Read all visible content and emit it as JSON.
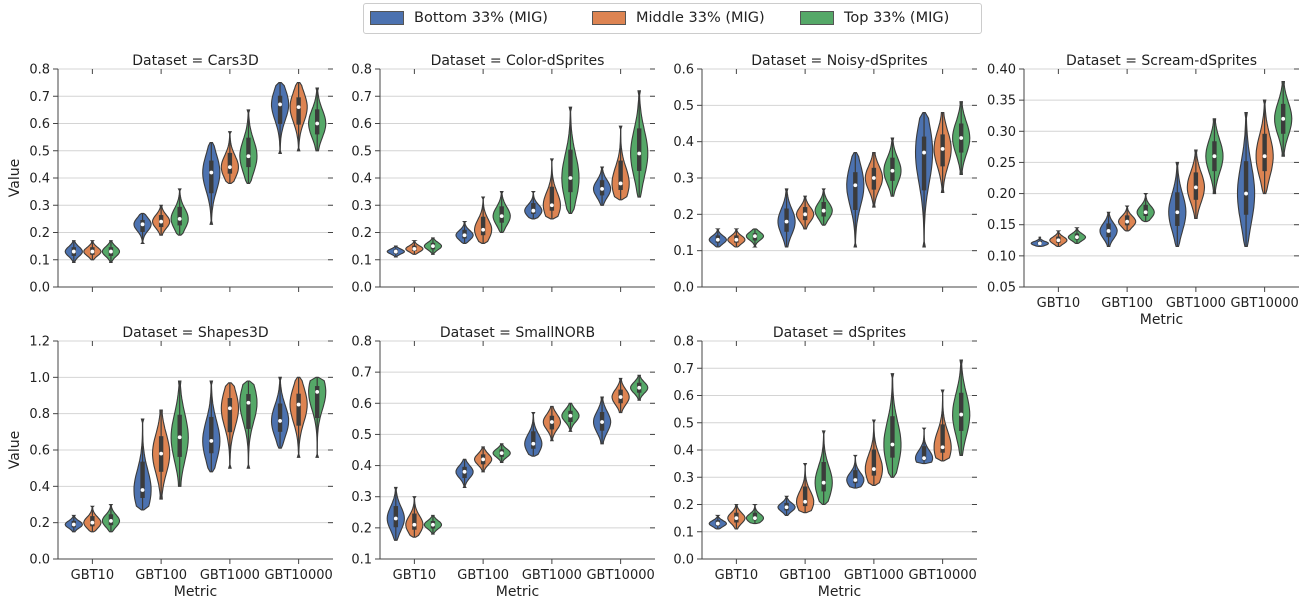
{
  "legend": [
    {
      "label": "Bottom 33% (MIG)",
      "color": "#4c72b0"
    },
    {
      "label": "Middle 33% (MIG)",
      "color": "#dd8452"
    },
    {
      "label": "Top 33% (MIG)",
      "color": "#55a868"
    }
  ],
  "chart_data": [
    {
      "type": "violin",
      "title": "Dataset = Cars3D",
      "xlabel": "",
      "ylabel": "Value",
      "categories": [
        "GBT10",
        "GBT100",
        "GBT1000",
        "GBT10000"
      ],
      "ylim": [
        0,
        0.8
      ],
      "yticks": [
        0.0,
        0.1,
        0.2,
        0.3,
        0.4,
        0.5,
        0.6,
        0.7,
        0.8
      ],
      "show_xticklabels": false,
      "series": [
        {
          "name": "Bottom 33% (MIG)",
          "medians": [
            0.13,
            0.23,
            0.42,
            0.67
          ],
          "min": [
            0.09,
            0.16,
            0.23,
            0.49
          ],
          "max": [
            0.17,
            0.27,
            0.53,
            0.75
          ]
        },
        {
          "name": "Middle 33% (MIG)",
          "medians": [
            0.13,
            0.24,
            0.44,
            0.66
          ],
          "min": [
            0.1,
            0.19,
            0.38,
            0.5
          ],
          "max": [
            0.17,
            0.3,
            0.57,
            0.75
          ]
        },
        {
          "name": "Top 33% (MIG)",
          "medians": [
            0.13,
            0.25,
            0.48,
            0.6
          ],
          "min": [
            0.09,
            0.19,
            0.38,
            0.5
          ],
          "max": [
            0.17,
            0.36,
            0.65,
            0.73
          ]
        }
      ]
    },
    {
      "type": "violin",
      "title": "Dataset = Color-dSprites",
      "xlabel": "",
      "ylabel": "",
      "categories": [
        "GBT10",
        "GBT100",
        "GBT1000",
        "GBT10000"
      ],
      "ylim": [
        0,
        0.8
      ],
      "yticks": [
        0.0,
        0.1,
        0.2,
        0.3,
        0.4,
        0.5,
        0.6,
        0.7,
        0.8
      ],
      "show_xticklabels": false,
      "series": [
        {
          "name": "Bottom 33% (MIG)",
          "medians": [
            0.13,
            0.19,
            0.28,
            0.36
          ],
          "min": [
            0.11,
            0.16,
            0.25,
            0.3
          ],
          "max": [
            0.15,
            0.24,
            0.35,
            0.44
          ]
        },
        {
          "name": "Middle 33% (MIG)",
          "medians": [
            0.14,
            0.21,
            0.3,
            0.38
          ],
          "min": [
            0.12,
            0.16,
            0.25,
            0.32
          ],
          "max": [
            0.17,
            0.33,
            0.47,
            0.59
          ]
        },
        {
          "name": "Top 33% (MIG)",
          "medians": [
            0.15,
            0.26,
            0.4,
            0.49
          ],
          "min": [
            0.12,
            0.2,
            0.27,
            0.33
          ],
          "max": [
            0.18,
            0.35,
            0.66,
            0.72
          ]
        }
      ]
    },
    {
      "type": "violin",
      "title": "Dataset = Noisy-dSprites",
      "xlabel": "",
      "ylabel": "",
      "categories": [
        "GBT10",
        "GBT100",
        "GBT1000",
        "GBT10000"
      ],
      "ylim": [
        0,
        0.6
      ],
      "yticks": [
        0.0,
        0.1,
        0.2,
        0.3,
        0.4,
        0.5,
        0.6
      ],
      "show_xticklabels": false,
      "series": [
        {
          "name": "Bottom 33% (MIG)",
          "medians": [
            0.13,
            0.18,
            0.28,
            0.37
          ],
          "min": [
            0.11,
            0.11,
            0.11,
            0.11
          ],
          "max": [
            0.16,
            0.27,
            0.37,
            0.48
          ]
        },
        {
          "name": "Middle 33% (MIG)",
          "medians": [
            0.13,
            0.2,
            0.3,
            0.38
          ],
          "min": [
            0.11,
            0.16,
            0.22,
            0.26
          ],
          "max": [
            0.16,
            0.25,
            0.37,
            0.48
          ]
        },
        {
          "name": "Top 33% (MIG)",
          "medians": [
            0.14,
            0.21,
            0.32,
            0.41
          ],
          "min": [
            0.11,
            0.17,
            0.25,
            0.31
          ],
          "max": [
            0.16,
            0.27,
            0.41,
            0.51
          ]
        }
      ]
    },
    {
      "type": "violin",
      "title": "Dataset = Scream-dSprites",
      "xlabel": "Metric",
      "ylabel": "",
      "categories": [
        "GBT10",
        "GBT100",
        "GBT1000",
        "GBT10000"
      ],
      "ylim": [
        0.05,
        0.4
      ],
      "yticks": [
        0.05,
        0.1,
        0.15,
        0.2,
        0.25,
        0.3,
        0.35,
        0.4
      ],
      "show_xticklabels": true,
      "series": [
        {
          "name": "Bottom 33% (MIG)",
          "medians": [
            0.12,
            0.14,
            0.17,
            0.2
          ],
          "min": [
            0.115,
            0.115,
            0.115,
            0.115
          ],
          "max": [
            0.13,
            0.17,
            0.25,
            0.33
          ]
        },
        {
          "name": "Middle 33% (MIG)",
          "medians": [
            0.125,
            0.155,
            0.21,
            0.26
          ],
          "min": [
            0.115,
            0.14,
            0.16,
            0.2
          ],
          "max": [
            0.14,
            0.18,
            0.27,
            0.35
          ]
        },
        {
          "name": "Top 33% (MIG)",
          "medians": [
            0.13,
            0.17,
            0.26,
            0.32
          ],
          "min": [
            0.12,
            0.155,
            0.2,
            0.26
          ],
          "max": [
            0.145,
            0.2,
            0.32,
            0.38
          ]
        }
      ]
    },
    {
      "type": "violin",
      "title": "Dataset = Shapes3D",
      "xlabel": "Metric",
      "ylabel": "Value",
      "categories": [
        "GBT10",
        "GBT100",
        "GBT1000",
        "GBT10000"
      ],
      "ylim": [
        0,
        1.2
      ],
      "yticks": [
        0.0,
        0.2,
        0.4,
        0.6,
        0.8,
        1.0,
        1.2
      ],
      "show_xticklabels": true,
      "series": [
        {
          "name": "Bottom 33% (MIG)",
          "medians": [
            0.19,
            0.38,
            0.65,
            0.76
          ],
          "min": [
            0.15,
            0.27,
            0.48,
            0.61
          ],
          "max": [
            0.24,
            0.77,
            0.98,
            1.0
          ]
        },
        {
          "name": "Middle 33% (MIG)",
          "medians": [
            0.2,
            0.58,
            0.83,
            0.85
          ],
          "min": [
            0.15,
            0.33,
            0.5,
            0.56
          ],
          "max": [
            0.29,
            0.82,
            0.97,
            1.0
          ]
        },
        {
          "name": "Top 33% (MIG)",
          "medians": [
            0.21,
            0.67,
            0.86,
            0.92
          ],
          "min": [
            0.15,
            0.4,
            0.5,
            0.56
          ],
          "max": [
            0.3,
            0.98,
            0.98,
            1.0
          ]
        }
      ]
    },
    {
      "type": "violin",
      "title": "Dataset = SmallNORB",
      "xlabel": "Metric",
      "ylabel": "",
      "categories": [
        "GBT10",
        "GBT100",
        "GBT1000",
        "GBT10000"
      ],
      "ylim": [
        0.1,
        0.8
      ],
      "yticks": [
        0.1,
        0.2,
        0.3,
        0.4,
        0.5,
        0.6,
        0.7,
        0.8
      ],
      "show_xticklabels": true,
      "series": [
        {
          "name": "Bottom 33% (MIG)",
          "medians": [
            0.23,
            0.38,
            0.47,
            0.54
          ],
          "min": [
            0.16,
            0.33,
            0.43,
            0.47
          ],
          "max": [
            0.33,
            0.42,
            0.57,
            0.62
          ]
        },
        {
          "name": "Middle 33% (MIG)",
          "medians": [
            0.21,
            0.42,
            0.54,
            0.62
          ],
          "min": [
            0.17,
            0.38,
            0.48,
            0.57
          ],
          "max": [
            0.3,
            0.46,
            0.59,
            0.68
          ]
        },
        {
          "name": "Top 33% (MIG)",
          "medians": [
            0.21,
            0.44,
            0.56,
            0.65
          ],
          "min": [
            0.18,
            0.41,
            0.51,
            0.61
          ],
          "max": [
            0.24,
            0.47,
            0.6,
            0.69
          ]
        }
      ]
    },
    {
      "type": "violin",
      "title": "Dataset = dSprites",
      "xlabel": "Metric",
      "ylabel": "",
      "categories": [
        "GBT10",
        "GBT100",
        "GBT1000",
        "GBT10000"
      ],
      "ylim": [
        0,
        0.8
      ],
      "yticks": [
        0.0,
        0.1,
        0.2,
        0.3,
        0.4,
        0.5,
        0.6,
        0.7,
        0.8
      ],
      "show_xticklabels": true,
      "series": [
        {
          "name": "Bottom 33% (MIG)",
          "medians": [
            0.13,
            0.19,
            0.29,
            0.37
          ],
          "min": [
            0.11,
            0.16,
            0.26,
            0.35
          ],
          "max": [
            0.16,
            0.23,
            0.38,
            0.48
          ]
        },
        {
          "name": "Middle 33% (MIG)",
          "medians": [
            0.15,
            0.21,
            0.33,
            0.41
          ],
          "min": [
            0.11,
            0.17,
            0.27,
            0.36
          ],
          "max": [
            0.2,
            0.35,
            0.51,
            0.62
          ]
        },
        {
          "name": "Top 33% (MIG)",
          "medians": [
            0.15,
            0.28,
            0.42,
            0.53
          ],
          "min": [
            0.13,
            0.2,
            0.3,
            0.38
          ],
          "max": [
            0.2,
            0.47,
            0.68,
            0.73
          ]
        }
      ]
    }
  ]
}
